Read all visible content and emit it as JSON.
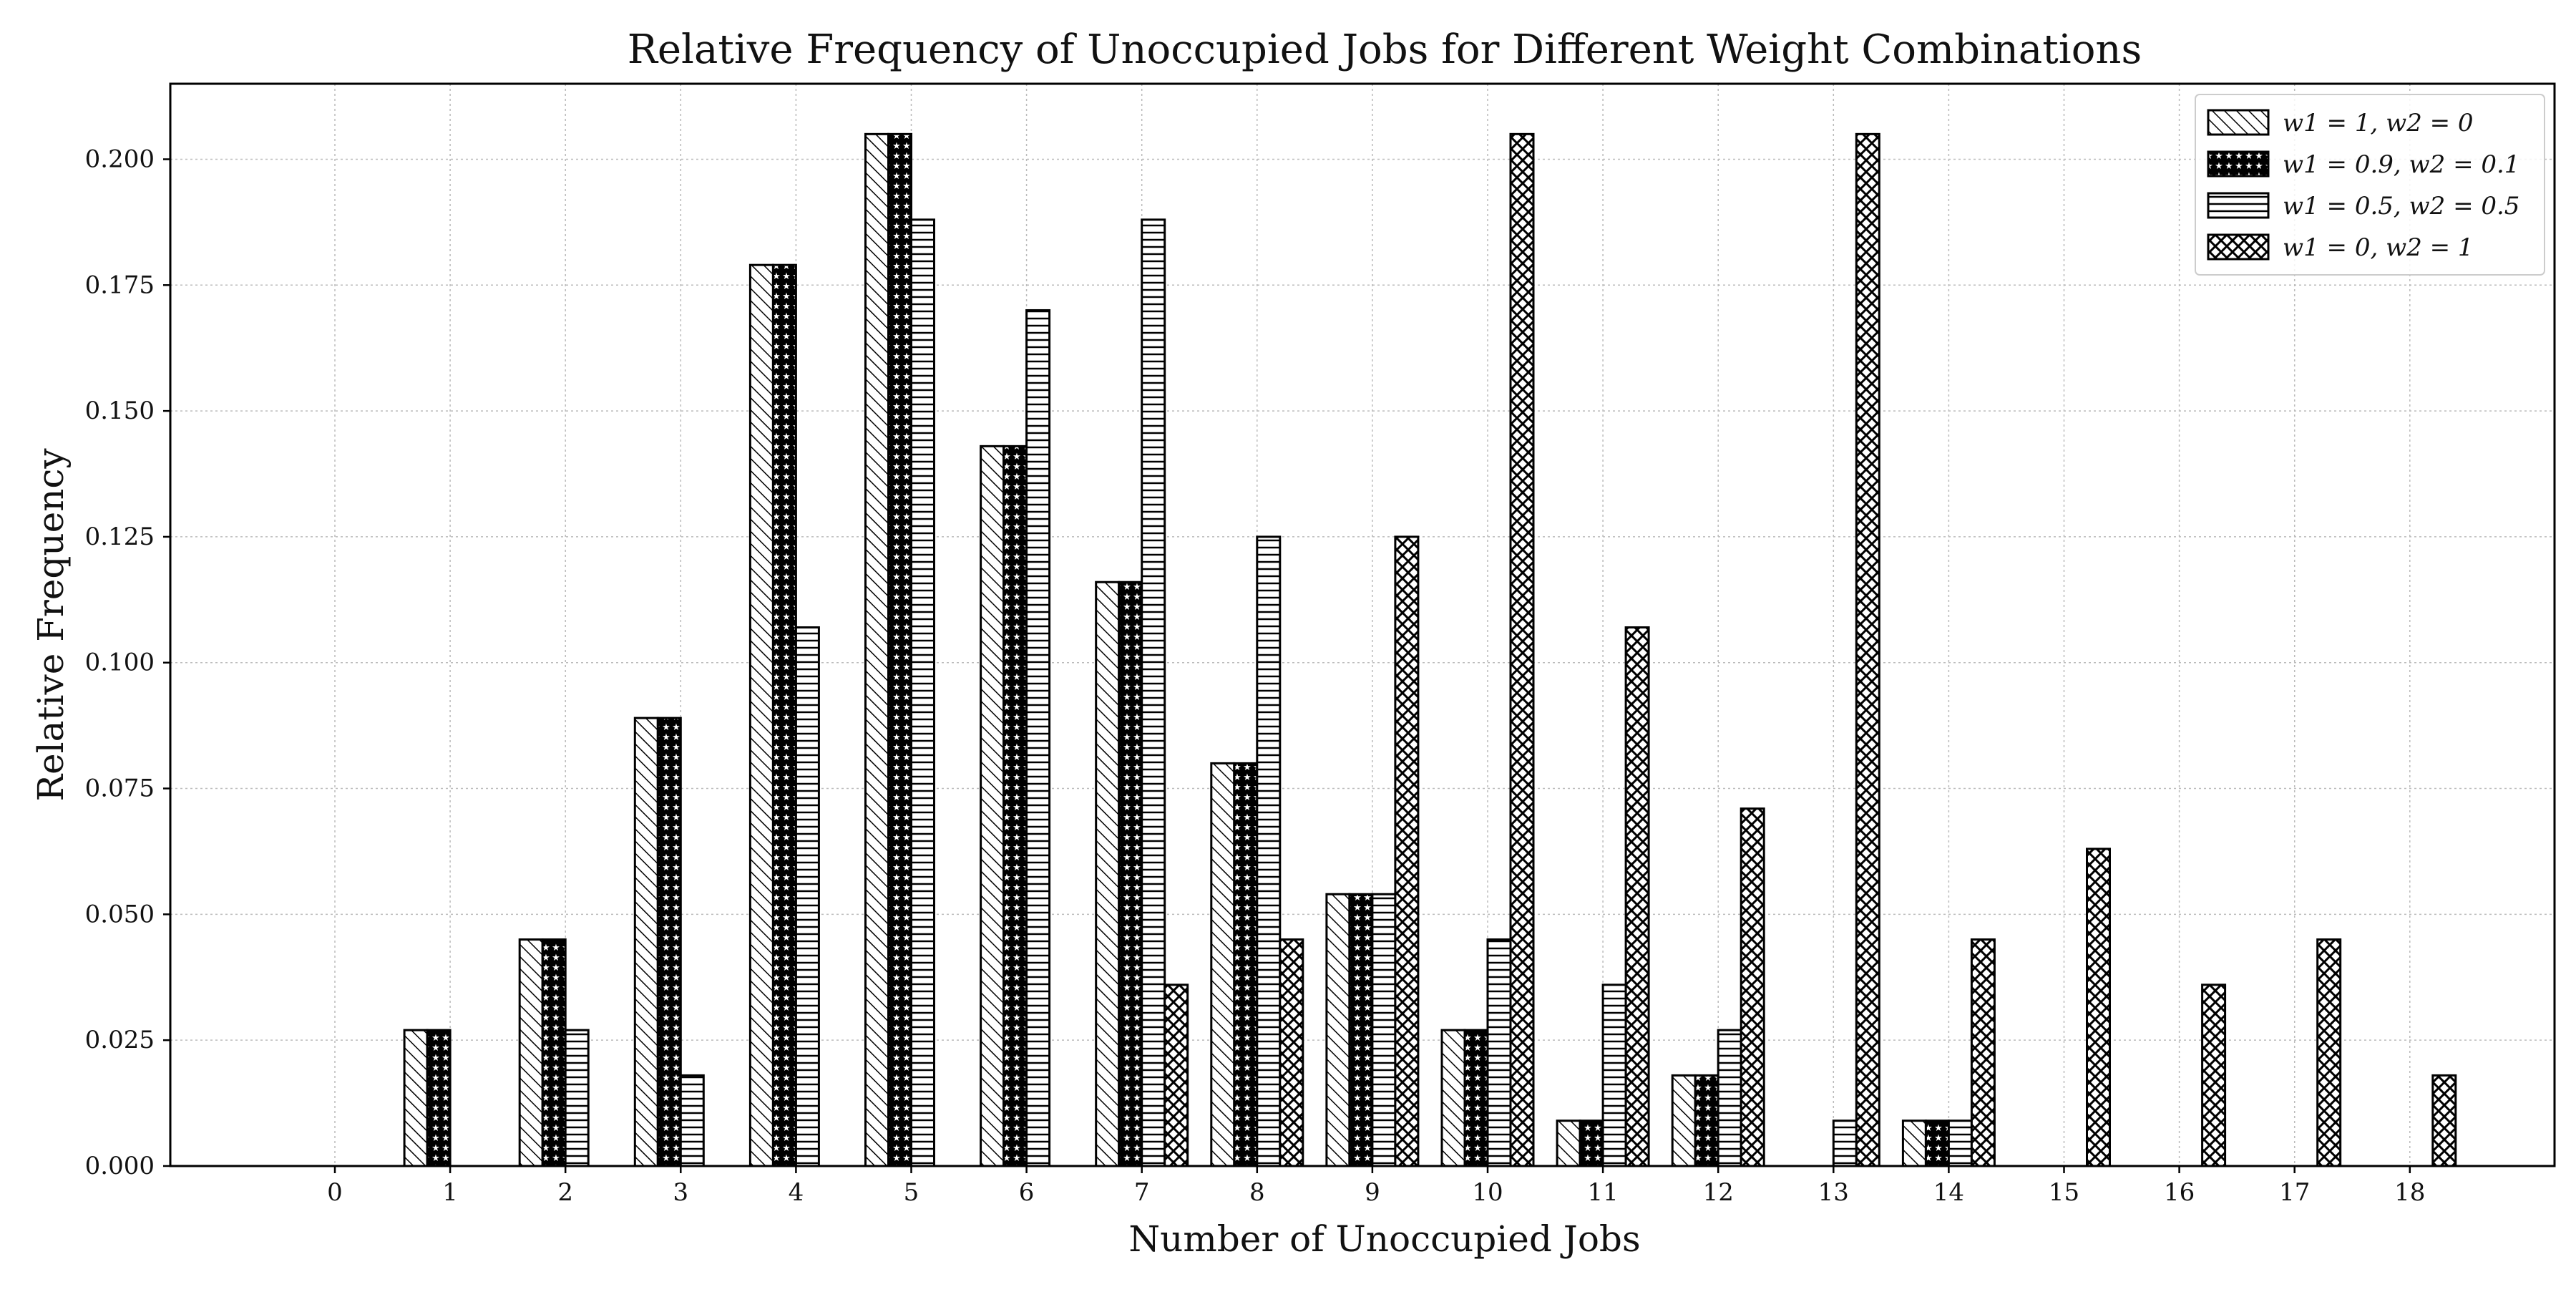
{
  "chart_data": {
    "type": "bar",
    "title": "Relative Frequency of Unoccupied Jobs for Different Weight Combinations",
    "xlabel": "Number of Unoccupied Jobs",
    "ylabel": "Relative Frequency",
    "categories": [
      "0",
      "1",
      "2",
      "3",
      "4",
      "5",
      "6",
      "7",
      "8",
      "9",
      "10",
      "11",
      "12",
      "13",
      "14",
      "15",
      "16",
      "17",
      "18"
    ],
    "ylim": [
      0,
      0.215
    ],
    "yticks": [
      0.0,
      0.025,
      0.05,
      0.075,
      0.1,
      0.125,
      0.15,
      0.175,
      0.2
    ],
    "ytick_labels": [
      "0.000",
      "0.025",
      "0.050",
      "0.075",
      "0.100",
      "0.125",
      "0.150",
      "0.175",
      "0.200"
    ],
    "grid": true,
    "legend_position": "top-right",
    "series": [
      {
        "name": "w1 = 1, w2 = 0",
        "pattern": "diagonal",
        "values": [
          0,
          0.027,
          0.045,
          0.089,
          0.179,
          0.205,
          0.143,
          0.116,
          0.08,
          0.054,
          0.027,
          0.009,
          0.018,
          0,
          0.009,
          0,
          0,
          0,
          0
        ]
      },
      {
        "name": "w1 = 0.9, w2 = 0.1",
        "pattern": "stars",
        "values": [
          0,
          0.027,
          0.045,
          0.089,
          0.179,
          0.205,
          0.143,
          0.116,
          0.08,
          0.054,
          0.027,
          0.009,
          0.018,
          0,
          0.009,
          0,
          0,
          0,
          0
        ]
      },
      {
        "name": "w1 = 0.5, w2 = 0.5",
        "pattern": "horizontal",
        "values": [
          0,
          0,
          0.027,
          0.018,
          0.107,
          0.188,
          0.17,
          0.188,
          0.125,
          0.054,
          0.045,
          0.036,
          0.027,
          0.009,
          0.009,
          0,
          0,
          0,
          0
        ]
      },
      {
        "name": "w1 = 0, w2 = 1",
        "pattern": "crosshatch",
        "values": [
          0,
          0,
          0,
          0,
          0,
          0,
          0,
          0.036,
          0.045,
          0.125,
          0.205,
          0.107,
          0.071,
          0.205,
          0.045,
          0.063,
          0.036,
          0.045,
          0.018
        ]
      }
    ]
  }
}
